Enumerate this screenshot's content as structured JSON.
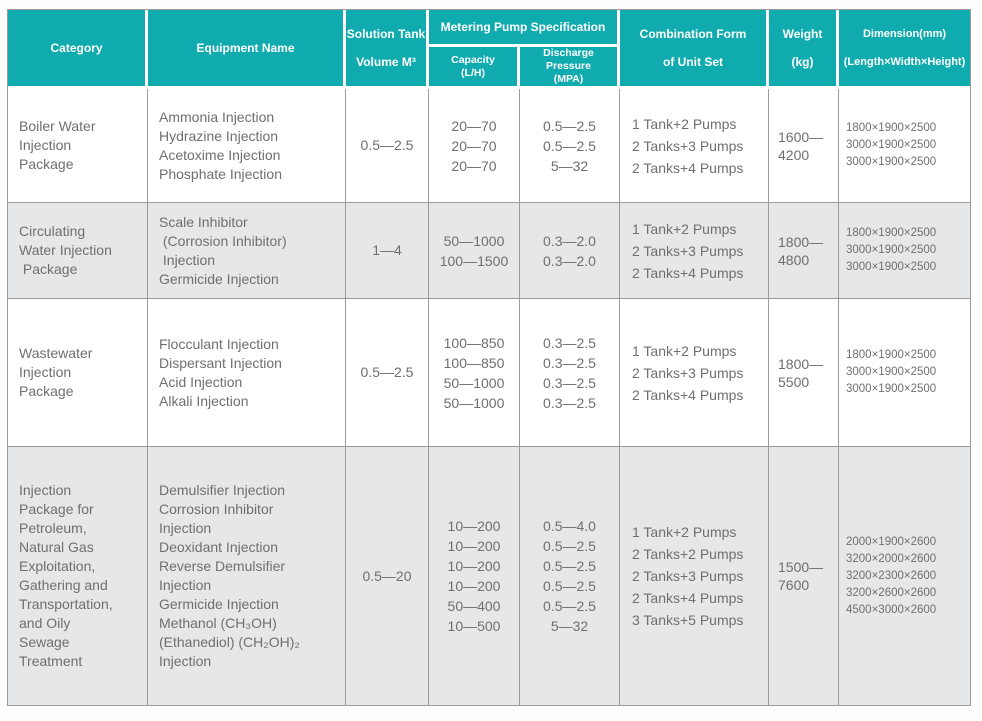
{
  "colors": {
    "header_bg": "#10abae",
    "header_text": "#ffffff",
    "row_alt_bg": "#e6e7e8",
    "body_text": "#6f6f6f",
    "grid_line": "#9b9b9b"
  },
  "header": {
    "category": "Category",
    "equipment": "Equipment Name",
    "tank_line1": "Solution Tank",
    "tank_line2": "Volume M³",
    "metering": "Metering Pump Specification",
    "capacity_line1": "Capacity",
    "capacity_line2": "(L/H)",
    "discharge_line1": "Discharge Pressure",
    "discharge_line2": "(MPA)",
    "combination_line1": "Combination Form",
    "combination_line2": "of Unit Set",
    "weight_line1": "Weight",
    "weight_line2": "(kg)",
    "dimension_line1": "Dimension(mm)",
    "dimension_line2": "(Length×Width×Height)"
  },
  "rows": [
    {
      "category": [
        "Boiler Water",
        "Injection",
        "Package"
      ],
      "equipment": [
        "Ammonia Injection",
        "Hydrazine Injection",
        "Acetoxime Injection",
        "Phosphate Injection"
      ],
      "tank": "0.5—2.5",
      "capacity": [
        "20—70",
        "20—70",
        "20—70"
      ],
      "discharge": [
        "0.5—2.5",
        "0.5—2.5",
        "5—32"
      ],
      "combination": [
        "1 Tank+2 Pumps",
        "2 Tanks+3 Pumps",
        "2 Tanks+4 Pumps"
      ],
      "weight": "1600—4200",
      "dimension": [
        "1800×1900×2500",
        "3000×1900×2500",
        "3000×1900×2500"
      ]
    },
    {
      "category": [
        "Circulating",
        "Water Injection",
        " Package"
      ],
      "equipment": [
        "Scale Inhibitor",
        " (Corrosion Inhibitor)",
        " Injection",
        "Germicide Injection"
      ],
      "tank": "1—4",
      "capacity": [
        "50—1000",
        "100—1500"
      ],
      "discharge": [
        "0.3—2.0",
        "0.3—2.0"
      ],
      "combination": [
        "1 Tank+2 Pumps",
        "2 Tanks+3 Pumps",
        "2 Tanks+4 Pumps"
      ],
      "weight": "1800—4800",
      "dimension": [
        "1800×1900×2500",
        "3000×1900×2500",
        "3000×1900×2500"
      ]
    },
    {
      "category": [
        "Wastewater",
        "Injection",
        "Package"
      ],
      "equipment": [
        "Flocculant Injection",
        "Dispersant Injection",
        "Acid Injection",
        "Alkali Injection"
      ],
      "tank": "0.5—2.5",
      "capacity": [
        "100—850",
        "100—850",
        "50—1000",
        "50—1000"
      ],
      "discharge": [
        "0.3—2.5",
        "0.3—2.5",
        "0.3—2.5",
        "0.3—2.5"
      ],
      "combination": [
        "1 Tank+2 Pumps",
        "2 Tanks+3 Pumps",
        "2 Tanks+4 Pumps"
      ],
      "weight": "1800—5500",
      "dimension": [
        "1800×1900×2500",
        "3000×1900×2500",
        "3000×1900×2500"
      ]
    },
    {
      "category": [
        "Injection",
        "Package for",
        "Petroleum,",
        "Natural Gas",
        "Exploitation,",
        "Gathering and",
        "Transportation,",
        "and Oily",
        "Sewage",
        "Treatment"
      ],
      "equipment": [
        "Demulsifier Injection",
        "Corrosion Inhibitor",
        "Injection",
        "Deoxidant Injection",
        "Reverse Demulsifier",
        "Injection",
        "Germicide Injection",
        "Methanol (CH₃OH)",
        "(Ethanediol) (CH₂OH)₂",
        "Injection"
      ],
      "tank": "0.5—20",
      "capacity": [
        "10—200",
        "10—200",
        "10—200",
        "10—200",
        "50—400",
        "10—500"
      ],
      "discharge": [
        "0.5—4.0",
        "0.5—2.5",
        "0.5—2.5",
        "0.5—2.5",
        "0.5—2.5",
        "5—32"
      ],
      "combination": [
        "1 Tank+2 Pumps",
        "2 Tanks+2 Pumps",
        "2 Tanks+3 Pumps",
        "2 Tanks+4 Pumps",
        "3 Tanks+5 Pumps"
      ],
      "weight": "1500—7600",
      "dimension": [
        "2000×1900×2600",
        "3200×2000×2600",
        "3200×2300×2600",
        "3200×2600×2600",
        "4500×3000×2600"
      ]
    }
  ]
}
